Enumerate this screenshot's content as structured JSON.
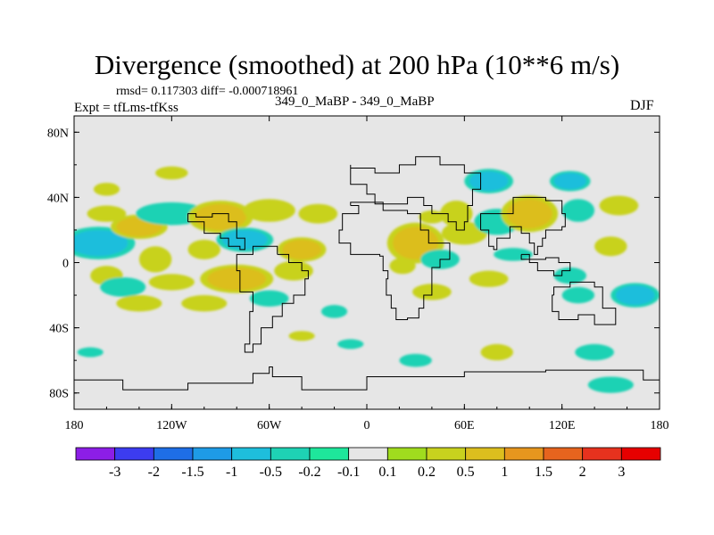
{
  "chart_data": {
    "type": "heatmap",
    "title": "Divergence (smoothed) at 200 hPa (10**6 m/s)",
    "subtitle_stats": "rmsd= 0.117303 diff= -0.000718961",
    "runs": "349_0_MaBP - 349_0_MaBP",
    "experiment": "Expt = tfLms-tfKss",
    "season": "DJF",
    "x_axis": {
      "range": [
        -180,
        180
      ],
      "ticks": [
        -180,
        -120,
        -60,
        0,
        60,
        120,
        180
      ],
      "tick_labels": [
        "180",
        "120W",
        "60W",
        "0",
        "60E",
        "120E",
        "180"
      ]
    },
    "y_axis": {
      "range": [
        -90,
        90
      ],
      "ticks": [
        80,
        40,
        0,
        -40,
        -80
      ],
      "tick_labels": [
        "80N",
        "40N",
        "0",
        "40S",
        "80S"
      ]
    },
    "colorbar": {
      "levels": [
        "-3",
        "-2",
        "-1.5",
        "-1",
        "-0.5",
        "-0.2",
        "-0.1",
        "0.1",
        "0.2",
        "0.5",
        "1",
        "1.5",
        "2",
        "3"
      ],
      "colors": [
        "#8c1ee6",
        "#3c3cf0",
        "#1e6ee6",
        "#1e9be6",
        "#1ebedc",
        "#1ed2b4",
        "#1ee69b",
        "#e6e6e6",
        "#a0dc1e",
        "#c8d21e",
        "#dcbe1e",
        "#e6961e",
        "#e6641e",
        "#e6321e",
        "#e60000"
      ]
    },
    "background_color": "#e6e6e6",
    "blobs": [
      {
        "lon": -165,
        "lat": 12,
        "rlon": 18,
        "rlat": 8,
        "v": -0.6
      },
      {
        "lon": -140,
        "lat": 22,
        "rlon": 14,
        "rlat": 6,
        "v": 0.6
      },
      {
        "lon": -160,
        "lat": 30,
        "rlon": 12,
        "rlat": 5,
        "v": 0.3
      },
      {
        "lon": -120,
        "lat": 30,
        "rlon": 22,
        "rlat": 7,
        "v": -0.3
      },
      {
        "lon": -90,
        "lat": 28,
        "rlon": 16,
        "rlat": 8,
        "v": 0.6
      },
      {
        "lon": -60,
        "lat": 32,
        "rlon": 16,
        "rlat": 7,
        "v": 0.3
      },
      {
        "lon": -30,
        "lat": 30,
        "rlon": 12,
        "rlat": 6,
        "v": 0.3
      },
      {
        "lon": -75,
        "lat": 14,
        "rlon": 14,
        "rlat": 6,
        "v": -0.6
      },
      {
        "lon": -40,
        "lat": 8,
        "rlon": 12,
        "rlat": 6,
        "v": 0.6
      },
      {
        "lon": -100,
        "lat": 8,
        "rlon": 10,
        "rlat": 6,
        "v": 0.3
      },
      {
        "lon": -130,
        "lat": 2,
        "rlon": 10,
        "rlat": 8,
        "v": 0.3
      },
      {
        "lon": -160,
        "lat": -8,
        "rlon": 10,
        "rlat": 6,
        "v": 0.3
      },
      {
        "lon": -150,
        "lat": -15,
        "rlon": 14,
        "rlat": 6,
        "v": -0.3
      },
      {
        "lon": -120,
        "lat": -12,
        "rlon": 14,
        "rlat": 5,
        "v": 0.3
      },
      {
        "lon": -80,
        "lat": -10,
        "rlon": 18,
        "rlat": 7,
        "v": 0.6
      },
      {
        "lon": -45,
        "lat": -5,
        "rlon": 12,
        "rlat": 6,
        "v": 0.3
      },
      {
        "lon": -100,
        "lat": -25,
        "rlon": 14,
        "rlat": 5,
        "v": 0.3
      },
      {
        "lon": -140,
        "lat": -25,
        "rlon": 14,
        "rlat": 5,
        "v": 0.3
      },
      {
        "lon": -60,
        "lat": -22,
        "rlon": 12,
        "rlat": 5,
        "v": -0.3
      },
      {
        "lon": -20,
        "lat": -30,
        "rlon": 8,
        "rlat": 4,
        "v": -0.3
      },
      {
        "lon": -40,
        "lat": -45,
        "rlon": 8,
        "rlat": 3,
        "v": 0.3
      },
      {
        "lon": -10,
        "lat": -50,
        "rlon": 8,
        "rlat": 3,
        "v": -0.3
      },
      {
        "lon": 30,
        "lat": 12,
        "rlon": 14,
        "rlat": 10,
        "v": 0.6
      },
      {
        "lon": 22,
        "lat": -2,
        "rlon": 8,
        "rlat": 5,
        "v": 0.3
      },
      {
        "lon": 45,
        "lat": 2,
        "rlon": 12,
        "rlat": 6,
        "v": -0.3
      },
      {
        "lon": 60,
        "lat": 18,
        "rlon": 14,
        "rlat": 7,
        "v": 0.3
      },
      {
        "lon": 55,
        "lat": 30,
        "rlon": 10,
        "rlat": 8,
        "v": 0.3
      },
      {
        "lon": 40,
        "lat": 28,
        "rlon": 8,
        "rlat": 4,
        "v": 0.3
      },
      {
        "lon": 80,
        "lat": 25,
        "rlon": 14,
        "rlat": 8,
        "v": -0.3
      },
      {
        "lon": 75,
        "lat": 50,
        "rlon": 12,
        "rlat": 6,
        "v": -0.6
      },
      {
        "lon": 125,
        "lat": 50,
        "rlon": 10,
        "rlat": 5,
        "v": -0.6
      },
      {
        "lon": 100,
        "lat": 30,
        "rlon": 14,
        "rlat": 9,
        "v": 0.6
      },
      {
        "lon": 130,
        "lat": 32,
        "rlon": 10,
        "rlat": 7,
        "v": -0.3
      },
      {
        "lon": 155,
        "lat": 35,
        "rlon": 12,
        "rlat": 6,
        "v": 0.3
      },
      {
        "lon": 150,
        "lat": 10,
        "rlon": 10,
        "rlat": 6,
        "v": 0.3
      },
      {
        "lon": 125,
        "lat": -8,
        "rlon": 10,
        "rlat": 5,
        "v": -0.3
      },
      {
        "lon": 90,
        "lat": 5,
        "rlon": 12,
        "rlat": 4,
        "v": -0.3
      },
      {
        "lon": 40,
        "lat": -18,
        "rlon": 12,
        "rlat": 5,
        "v": 0.3
      },
      {
        "lon": 75,
        "lat": -10,
        "rlon": 12,
        "rlat": 5,
        "v": 0.3
      },
      {
        "lon": 130,
        "lat": -20,
        "rlon": 10,
        "rlat": 5,
        "v": -0.3
      },
      {
        "lon": 165,
        "lat": -20,
        "rlon": 12,
        "rlat": 6,
        "v": -0.6
      },
      {
        "lon": 80,
        "lat": -55,
        "rlon": 10,
        "rlat": 5,
        "v": 0.3
      },
      {
        "lon": 30,
        "lat": -60,
        "rlon": 10,
        "rlat": 4,
        "v": -0.3
      },
      {
        "lon": 140,
        "lat": -55,
        "rlon": 12,
        "rlat": 5,
        "v": -0.3
      },
      {
        "lon": -120,
        "lat": 55,
        "rlon": 10,
        "rlat": 4,
        "v": 0.3
      },
      {
        "lon": -160,
        "lat": 45,
        "rlon": 8,
        "rlat": 4,
        "v": 0.3
      },
      {
        "lon": 150,
        "lat": -75,
        "rlon": 14,
        "rlat": 5,
        "v": -0.3
      },
      {
        "lon": -170,
        "lat": -55,
        "rlon": 8,
        "rlat": 3,
        "v": -0.3
      }
    ],
    "coastlines": [
      [
        [
          -10,
          60
        ],
        [
          -10,
          48
        ],
        [
          0,
          42
        ],
        [
          5,
          36
        ],
        [
          10,
          36
        ],
        [
          25,
          40
        ],
        [
          30,
          40
        ],
        [
          35,
          35
        ],
        [
          40,
          30
        ],
        [
          50,
          25
        ],
        [
          55,
          20
        ],
        [
          60,
          25
        ],
        [
          62,
          35
        ],
        [
          65,
          45
        ],
        [
          70,
          55
        ],
        [
          60,
          60
        ],
        [
          45,
          65
        ],
        [
          30,
          60
        ],
        [
          20,
          55
        ],
        [
          10,
          55
        ],
        [
          5,
          58
        ],
        [
          -10,
          60
        ]
      ],
      [
        [
          -55,
          5
        ],
        [
          -48,
          0
        ],
        [
          -40,
          -5
        ],
        [
          -36,
          -10
        ],
        [
          -38,
          -20
        ],
        [
          -45,
          -25
        ],
        [
          -52,
          -33
        ],
        [
          -58,
          -40
        ],
        [
          -65,
          -50
        ],
        [
          -70,
          -55
        ],
        [
          -75,
          -50
        ],
        [
          -72,
          -30
        ],
        [
          -70,
          -18
        ],
        [
          -78,
          -5
        ],
        [
          -80,
          5
        ],
        [
          -70,
          10
        ],
        [
          -60,
          10
        ],
        [
          -55,
          5
        ]
      ],
      [
        [
          -110,
          25
        ],
        [
          -100,
          18
        ],
        [
          -90,
          15
        ],
        [
          -85,
          10
        ],
        [
          -78,
          8
        ],
        [
          -75,
          15
        ],
        [
          -80,
          25
        ],
        [
          -85,
          30
        ],
        [
          -95,
          28
        ],
        [
          -105,
          30
        ],
        [
          -110,
          25
        ]
      ],
      [
        [
          -10,
          35
        ],
        [
          -5,
          30
        ],
        [
          -15,
          20
        ],
        [
          -17,
          12
        ],
        [
          -10,
          5
        ],
        [
          0,
          5
        ],
        [
          8,
          4
        ],
        [
          10,
          -5
        ],
        [
          13,
          -10
        ],
        [
          12,
          -20
        ],
        [
          15,
          -28
        ],
        [
          18,
          -35
        ],
        [
          25,
          -34
        ],
        [
          32,
          -28
        ],
        [
          35,
          -20
        ],
        [
          40,
          -12
        ],
        [
          40,
          -3
        ],
        [
          45,
          2
        ],
        [
          51,
          12
        ],
        [
          43,
          12
        ],
        [
          38,
          20
        ],
        [
          33,
          30
        ],
        [
          25,
          32
        ],
        [
          10,
          37
        ],
        [
          -10,
          35
        ]
      ],
      [
        [
          70,
          20
        ],
        [
          75,
          10
        ],
        [
          78,
          8
        ],
        [
          80,
          15
        ],
        [
          88,
          22
        ],
        [
          95,
          18
        ],
        [
          100,
          12
        ],
        [
          103,
          5
        ],
        [
          105,
          10
        ],
        [
          108,
          15
        ],
        [
          110,
          20
        ],
        [
          120,
          22
        ],
        [
          122,
          30
        ],
        [
          120,
          38
        ],
        [
          110,
          40
        ],
        [
          90,
          30
        ],
        [
          75,
          30
        ],
        [
          70,
          20
        ]
      ],
      [
        [
          115,
          -20
        ],
        [
          114,
          -30
        ],
        [
          118,
          -35
        ],
        [
          130,
          -32
        ],
        [
          140,
          -38
        ],
        [
          150,
          -38
        ],
        [
          153,
          -28
        ],
        [
          145,
          -15
        ],
        [
          140,
          -12
        ],
        [
          130,
          -12
        ],
        [
          125,
          -15
        ],
        [
          115,
          -20
        ]
      ],
      [
        [
          -180,
          -72
        ],
        [
          -150,
          -78
        ],
        [
          -110,
          -74
        ],
        [
          -70,
          -68
        ],
        [
          -60,
          -64
        ],
        [
          -58,
          -70
        ],
        [
          -40,
          -78
        ],
        [
          0,
          -70
        ],
        [
          60,
          -67
        ],
        [
          110,
          -66
        ],
        [
          140,
          -66
        ],
        [
          170,
          -72
        ],
        [
          180,
          -74
        ]
      ],
      [
        [
          95,
          5
        ],
        [
          100,
          0
        ],
        [
          105,
          -5
        ],
        [
          115,
          -8
        ],
        [
          120,
          -5
        ],
        [
          125,
          0
        ],
        [
          118,
          3
        ],
        [
          110,
          2
        ],
        [
          95,
          5
        ]
      ]
    ]
  }
}
